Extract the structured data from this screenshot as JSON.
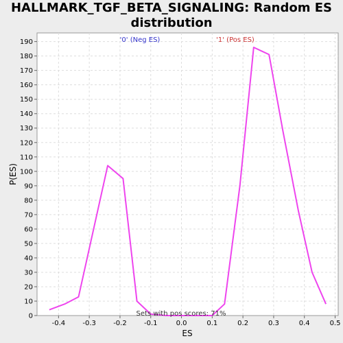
{
  "chart_data": {
    "type": "line",
    "title_line1": "HALLMARK_TGF_BETA_SIGNALING: Random ES",
    "title_line2": "distribution",
    "xlabel": "ES",
    "ylabel": "P(ES)",
    "xlim": [
      -0.47,
      0.51
    ],
    "ylim": [
      0,
      196
    ],
    "x_ticks": [
      -0.4,
      -0.3,
      -0.2,
      -0.1,
      0.0,
      0.1,
      0.2,
      0.3,
      0.4,
      0.5
    ],
    "x_tick_labels": [
      "-0.4",
      "-0.3",
      "-0.2",
      "-0.1",
      "0.0",
      "0.1",
      "0.2",
      "0.3",
      "0.4",
      "0.5"
    ],
    "y_ticks": [
      0,
      10,
      20,
      30,
      40,
      50,
      60,
      70,
      80,
      90,
      100,
      110,
      120,
      130,
      140,
      150,
      160,
      170,
      180,
      190
    ],
    "grid": true,
    "series": [
      {
        "color": "#ee44ee",
        "x": [
          -0.43,
          -0.38,
          -0.335,
          -0.24,
          -0.19,
          -0.145,
          -0.1,
          -0.05,
          0.0,
          0.05,
          0.1,
          0.14,
          0.19,
          0.235,
          0.285,
          0.33,
          0.38,
          0.425,
          0.47
        ],
        "y": [
          4,
          8,
          13,
          104,
          95,
          10,
          1,
          0,
          0,
          0,
          0,
          8,
          90,
          186,
          181,
          128,
          73,
          30,
          8
        ]
      }
    ],
    "annotations": {
      "neg_label": "'0' (Neg ES)",
      "pos_label": "'1' (Pos ES)",
      "pos_scores": "Sets with pos scores: 71%",
      "neg_color": "#3333cc",
      "pos_color": "#cc3333"
    }
  }
}
